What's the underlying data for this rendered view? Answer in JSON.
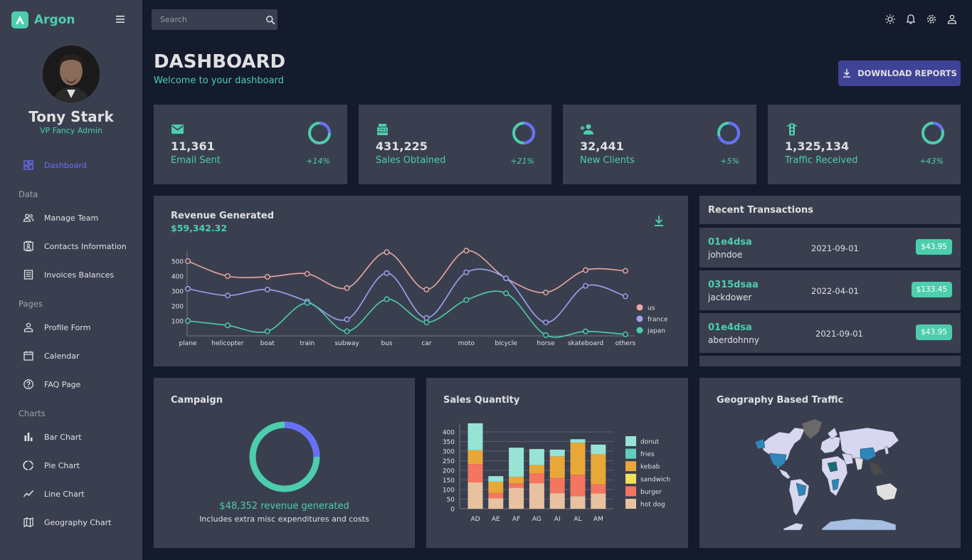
{
  "app": {
    "name": "Argon"
  },
  "user": {
    "name": "Tony Stark",
    "role": "VP Fancy Admin"
  },
  "sidebar": {
    "dashboard": "Dashboard",
    "sections": {
      "data": "Data",
      "pages": "Pages",
      "charts": "Charts"
    },
    "items": {
      "team": "Manage Team",
      "contacts": "Contacts Information",
      "invoices": "Invoices Balances",
      "profile": "Profile Form",
      "calendar": "Calendar",
      "faq": "FAQ Page",
      "bar": "Bar Chart",
      "pie": "Pie Chart",
      "line": "Line Chart",
      "geo": "Geography Chart"
    }
  },
  "search": {
    "placeholder": "Search"
  },
  "header": {
    "title": "DASHBOARD",
    "subtitle": "Welcome to your dashboard",
    "download": "DOWNLOAD REPORTS"
  },
  "stats": [
    {
      "value": "11,361",
      "label": "Email Sent",
      "increase": "+14%",
      "progress": 0.75
    },
    {
      "value": "431,225",
      "label": "Sales Obtained",
      "increase": "+21%",
      "progress": 0.5
    },
    {
      "value": "32,441",
      "label": "New Clients",
      "increase": "+5%",
      "progress": 0.3
    },
    {
      "value": "1,325,134",
      "label": "Traffic Received",
      "increase": "+43%",
      "progress": 0.8
    }
  ],
  "revenue": {
    "title": "Revenue Generated",
    "amount": "$59,342.32"
  },
  "transactions": {
    "title": "Recent Transactions",
    "rows": [
      {
        "id": "01e4dsa",
        "user": "johndoe",
        "date": "2021-09-01",
        "cost": "$43.95"
      },
      {
        "id": "0315dsaa",
        "user": "jackdower",
        "date": "2022-04-01",
        "cost": "$133.45"
      },
      {
        "id": "01e4dsa",
        "user": "aberdohnny",
        "date": "2021-09-01",
        "cost": "$43.95"
      }
    ]
  },
  "campaign": {
    "title": "Campaign",
    "amount": "$48,352 revenue generated",
    "note": "Includes extra misc expenditures and costs",
    "progress": 0.75
  },
  "sales_title": "Sales Quantity",
  "geo_title": "Geography Based Traffic",
  "colors": {
    "accent": "#4cceac",
    "primary": "#6870fa",
    "panel": "#3a3f50",
    "bg": "#141b2d"
  },
  "chart_data": [
    {
      "type": "line",
      "categories": [
        "plane",
        "helicopter",
        "boat",
        "train",
        "subway",
        "bus",
        "car",
        "moto",
        "bicycle",
        "horse",
        "skateboard",
        "others"
      ],
      "series": [
        {
          "name": "us",
          "color": "#e8a9a0",
          "values": [
            500,
            400,
            395,
            415,
            320,
            560,
            310,
            570,
            385,
            290,
            440,
            435
          ]
        },
        {
          "name": "france",
          "color": "#9ea3f0",
          "values": [
            315,
            270,
            310,
            230,
            110,
            420,
            120,
            425,
            385,
            90,
            335,
            265
          ]
        },
        {
          "name": "japan",
          "color": "#4cceac",
          "values": [
            100,
            70,
            30,
            220,
            30,
            245,
            90,
            240,
            285,
            5,
            30,
            10
          ]
        }
      ],
      "yticks": [
        100,
        200,
        300,
        400,
        500
      ],
      "ylim": [
        0,
        600
      ]
    },
    {
      "type": "bar",
      "categories": [
        "AD",
        "AE",
        "AF",
        "AG",
        "AI",
        "AL",
        "AM"
      ],
      "series": [
        {
          "name": "hot dog",
          "color": "#e8c1a0",
          "values": [
            137,
            55,
            109,
            133,
            81,
            66,
            80
          ]
        },
        {
          "name": "burger",
          "color": "#f47560",
          "values": [
            96,
            28,
            23,
            52,
            80,
            111,
            47
          ]
        },
        {
          "name": "sandwich",
          "color": "#f1e15b",
          "values": [
            0,
            0,
            0,
            0,
            0,
            0,
            0
          ]
        },
        {
          "name": "kebab",
          "color": "#e8a838",
          "values": [
            72,
            58,
            34,
            43,
            112,
            167,
            158
          ]
        },
        {
          "name": "fries",
          "color": "#61cdbb",
          "values": [
            0,
            0,
            0,
            0,
            0,
            0,
            0
          ]
        },
        {
          "name": "donut",
          "color": "#97e3d5",
          "values": [
            140,
            29,
            152,
            83,
            35,
            18,
            49
          ]
        }
      ],
      "yticks": [
        0,
        50,
        100,
        150,
        200,
        250,
        300,
        350,
        400
      ],
      "ylim": [
        0,
        400
      ]
    }
  ]
}
